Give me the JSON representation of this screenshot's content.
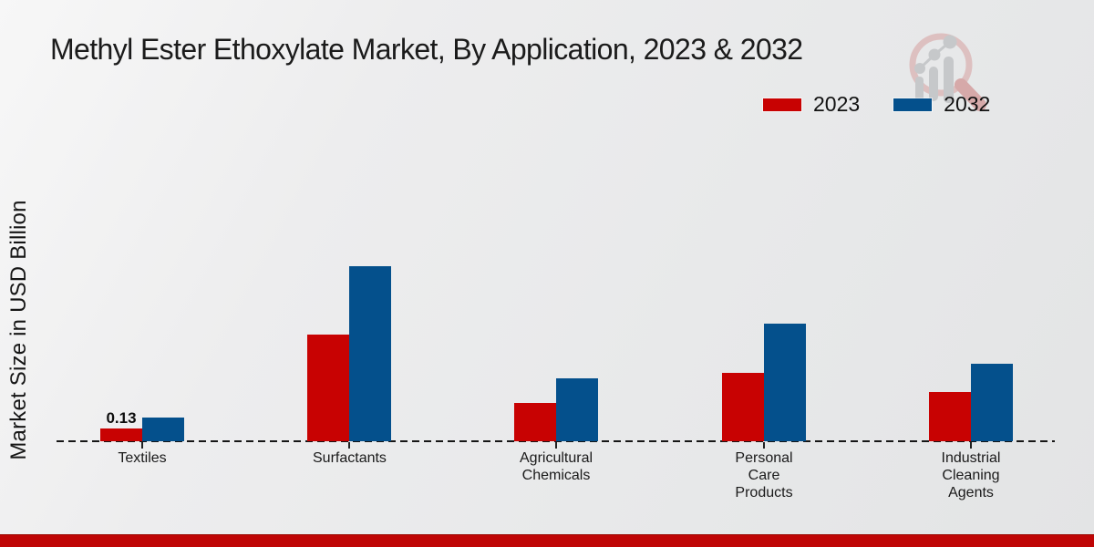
{
  "page": {
    "title": "Methyl Ester Ethoxylate Market, By Application, 2023 & 2032"
  },
  "chart_data": {
    "type": "bar",
    "title": "Methyl Ester Ethoxylate Market, By Application, 2023 & 2032",
    "xlabel": "",
    "ylabel": "Market Size in USD Billion",
    "categories": [
      "Textiles",
      "Surfactants",
      "Agricultural Chemicals",
      "Personal Care Products",
      "Industrial Cleaning Agents"
    ],
    "series": [
      {
        "name": "2023",
        "color": "#c80202",
        "values": [
          0.13,
          1.05,
          0.38,
          0.67,
          0.48
        ]
      },
      {
        "name": "2032",
        "color": "#04508c",
        "values": [
          0.23,
          1.72,
          0.62,
          1.16,
          0.76
        ]
      }
    ],
    "annotations": [
      {
        "text": "0.13",
        "series_index": 0,
        "category_index": 0
      }
    ],
    "ylim": [
      0,
      2.0
    ],
    "grid": false,
    "legend_position": "top-right",
    "baseline_style": "dashed"
  },
  "icons": {
    "watermark": "magnifier-growth-chart-logo"
  },
  "colors": {
    "bar_2023": "#c80202",
    "bar_2032": "#04508c",
    "footer_band": "#bf0505",
    "background": "#e9eaeb"
  }
}
